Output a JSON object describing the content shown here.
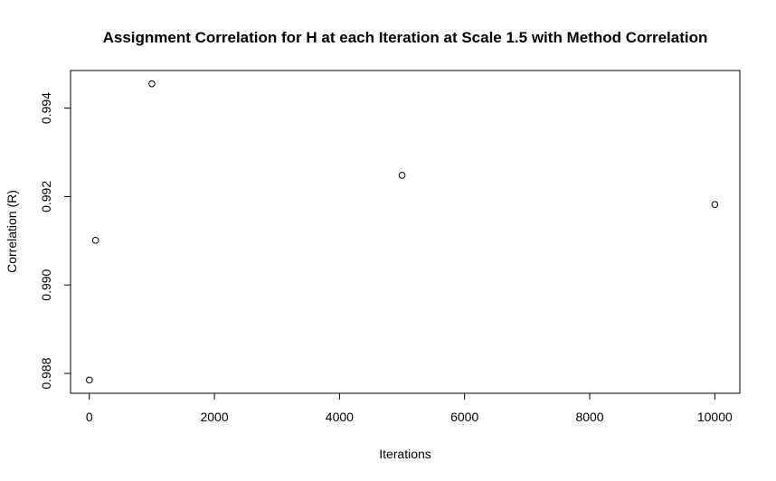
{
  "chart_data": {
    "type": "scatter",
    "title": "Assignment Correlation for H at each Iteration at Scale 1.5 with Method Correlation",
    "xlabel": "Iterations",
    "ylabel": "Correlation (R)",
    "x": [
      1,
      100,
      1000,
      5000,
      10000
    ],
    "y": [
      0.98785,
      0.99101,
      0.99455,
      0.99248,
      0.99182
    ],
    "xlim": [
      -300,
      10400
    ],
    "ylim": [
      0.98755,
      0.99485
    ],
    "xticks": [
      0,
      2000,
      4000,
      6000,
      8000,
      10000
    ],
    "xtick_labels": [
      "0",
      "2000",
      "4000",
      "6000",
      "8000",
      "10000"
    ],
    "yticks": [
      0.988,
      0.99,
      0.992,
      0.994
    ],
    "ytick_labels": [
      "0.988",
      "0.990",
      "0.992",
      "0.994"
    ],
    "marker": "open-circle",
    "grid": false,
    "legend": "none"
  }
}
